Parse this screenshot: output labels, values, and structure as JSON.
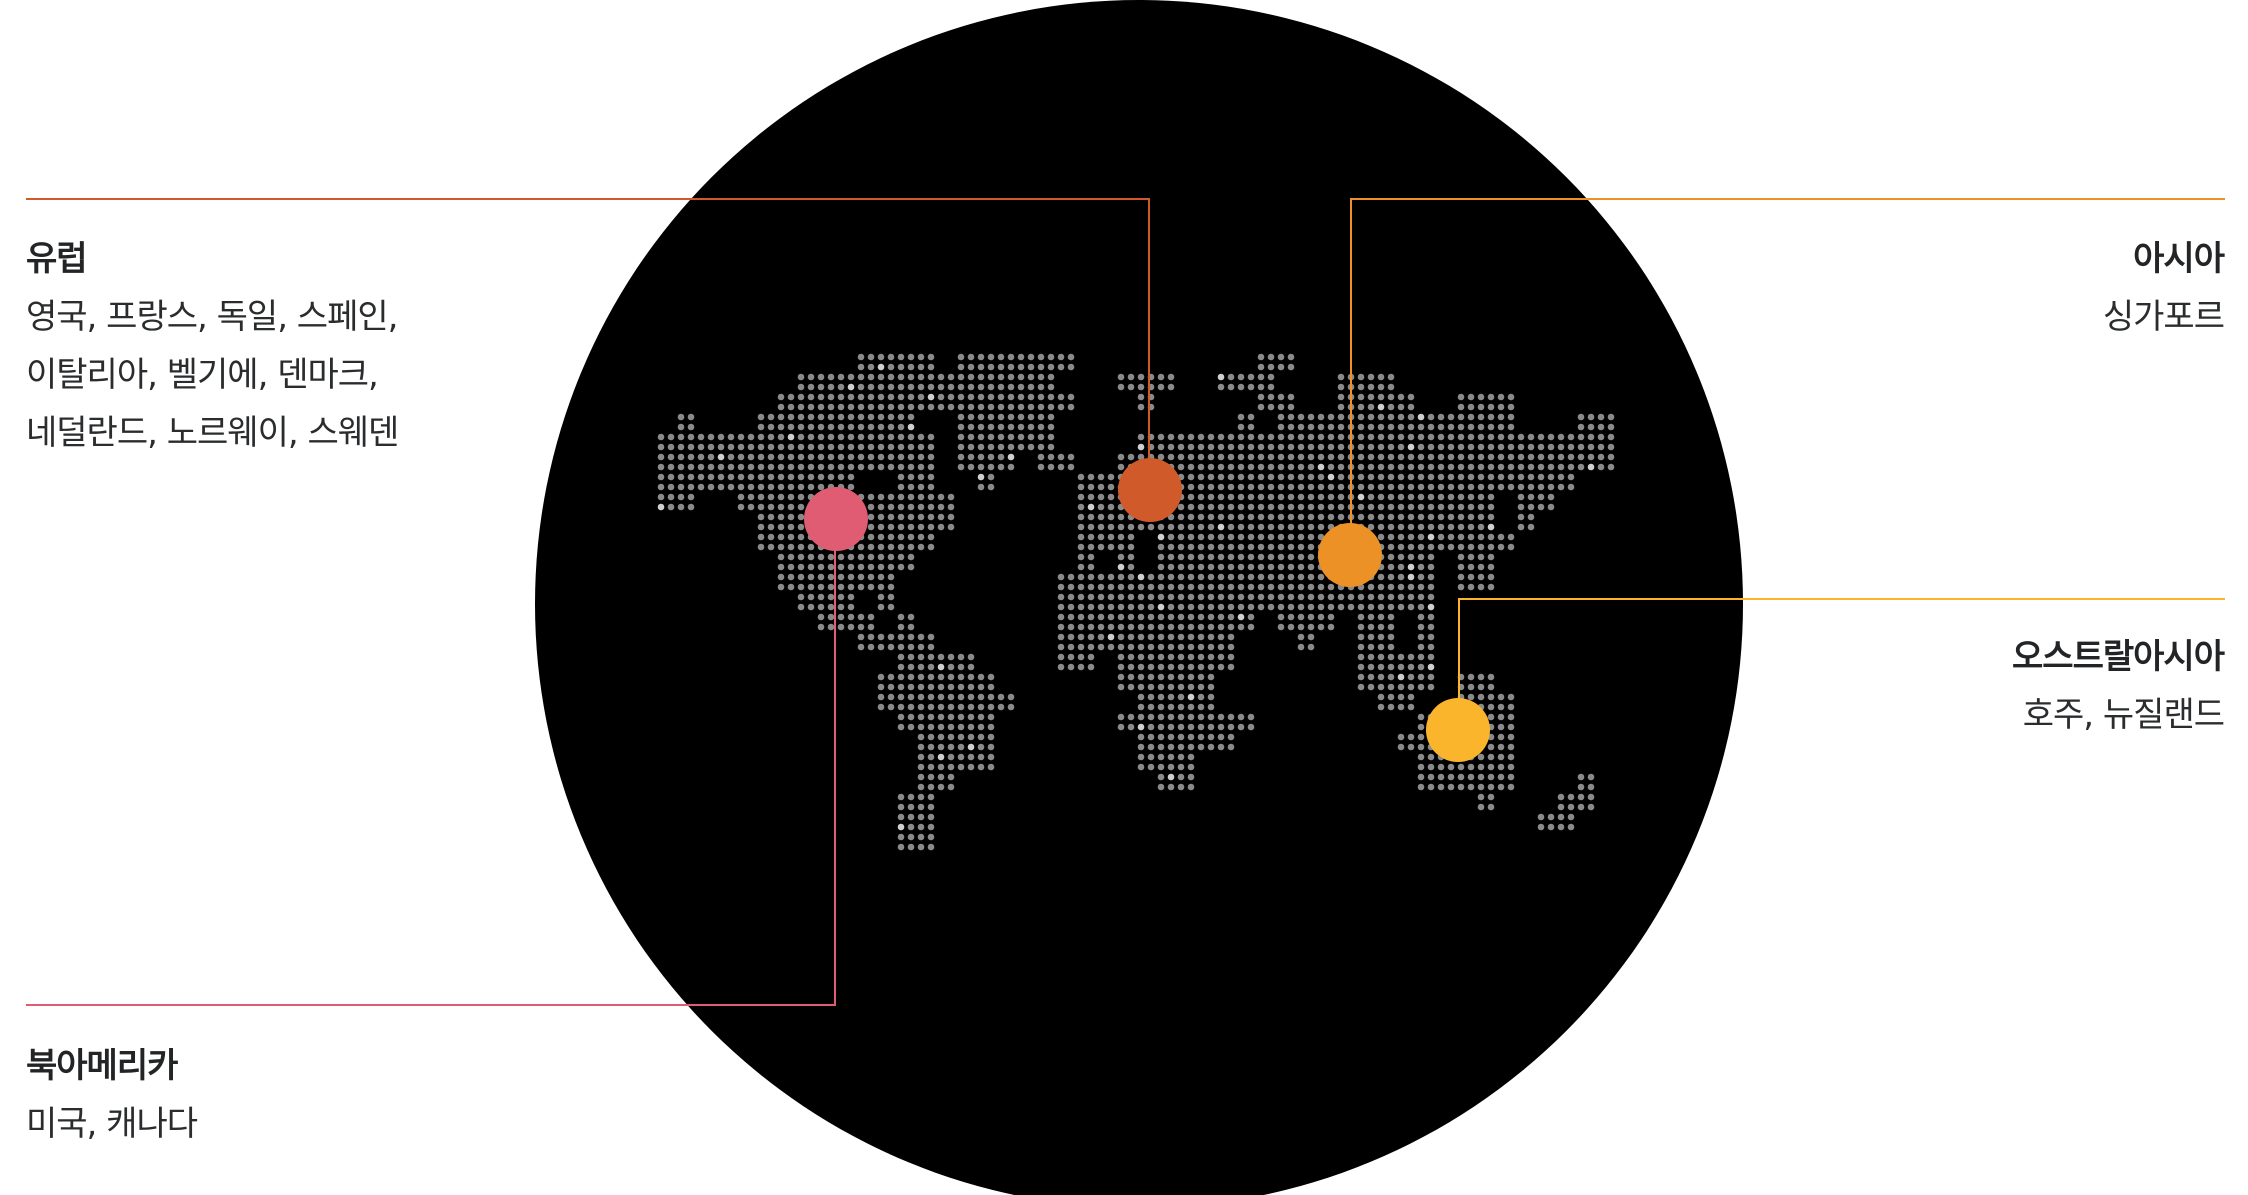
{
  "regions": {
    "europe": {
      "title": "유럽",
      "lines": [
        "영국, 프랑스, 독일, 스페인,",
        "이탈리아, 벨기에, 덴마크,",
        "네덜란드, 노르웨이, 스웨덴"
      ],
      "color": "#d05a2a"
    },
    "asia": {
      "title": "아시아",
      "lines": [
        "싱가포르"
      ],
      "color": "#ec9126"
    },
    "oceania": {
      "title": "오스트랄아시아",
      "lines": [
        "호주, 뉴질랜드"
      ],
      "color": "#fbb52d"
    },
    "north_america": {
      "title": "북아메리카",
      "lines": [
        "미국, 캐나다"
      ],
      "color": "#e05c72"
    }
  },
  "map": {
    "background": "#000000",
    "dot_color": "#8a8a8a",
    "dot_highlight": "#d0d0d0"
  }
}
